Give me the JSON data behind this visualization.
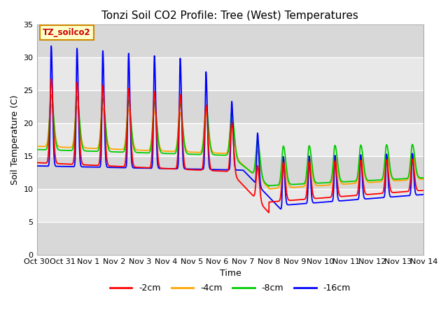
{
  "title": "Tonzi Soil CO2 Profile: Tree (West) Temperatures",
  "xlabel": "Time",
  "ylabel": "Soil Temperature (C)",
  "ylim": [
    0,
    35
  ],
  "xlim": [
    0,
    15
  ],
  "yticks": [
    0,
    5,
    10,
    15,
    20,
    25,
    30,
    35
  ],
  "xtick_labels": [
    "Oct 30",
    "Oct 31",
    "Nov 1",
    "Nov 2",
    "Nov 3",
    "Nov 4",
    "Nov 5",
    "Nov 6",
    "Nov 7",
    "Nov 8",
    "Nov 9",
    "Nov 10",
    "Nov 11",
    "Nov 12",
    "Nov 13",
    "Nov 14"
  ],
  "xtick_positions": [
    0,
    1,
    2,
    3,
    4,
    5,
    6,
    7,
    8,
    9,
    10,
    11,
    12,
    13,
    14,
    15
  ],
  "colors": {
    "-2cm": "#ff0000",
    "-4cm": "#ffa500",
    "-8cm": "#00cc00",
    "-16cm": "#0000ff"
  },
  "legend_label": "TZ_soilco2",
  "plot_bg_color": "#e8e8e8",
  "title_fontsize": 11,
  "axis_fontsize": 9,
  "tick_fontsize": 8
}
